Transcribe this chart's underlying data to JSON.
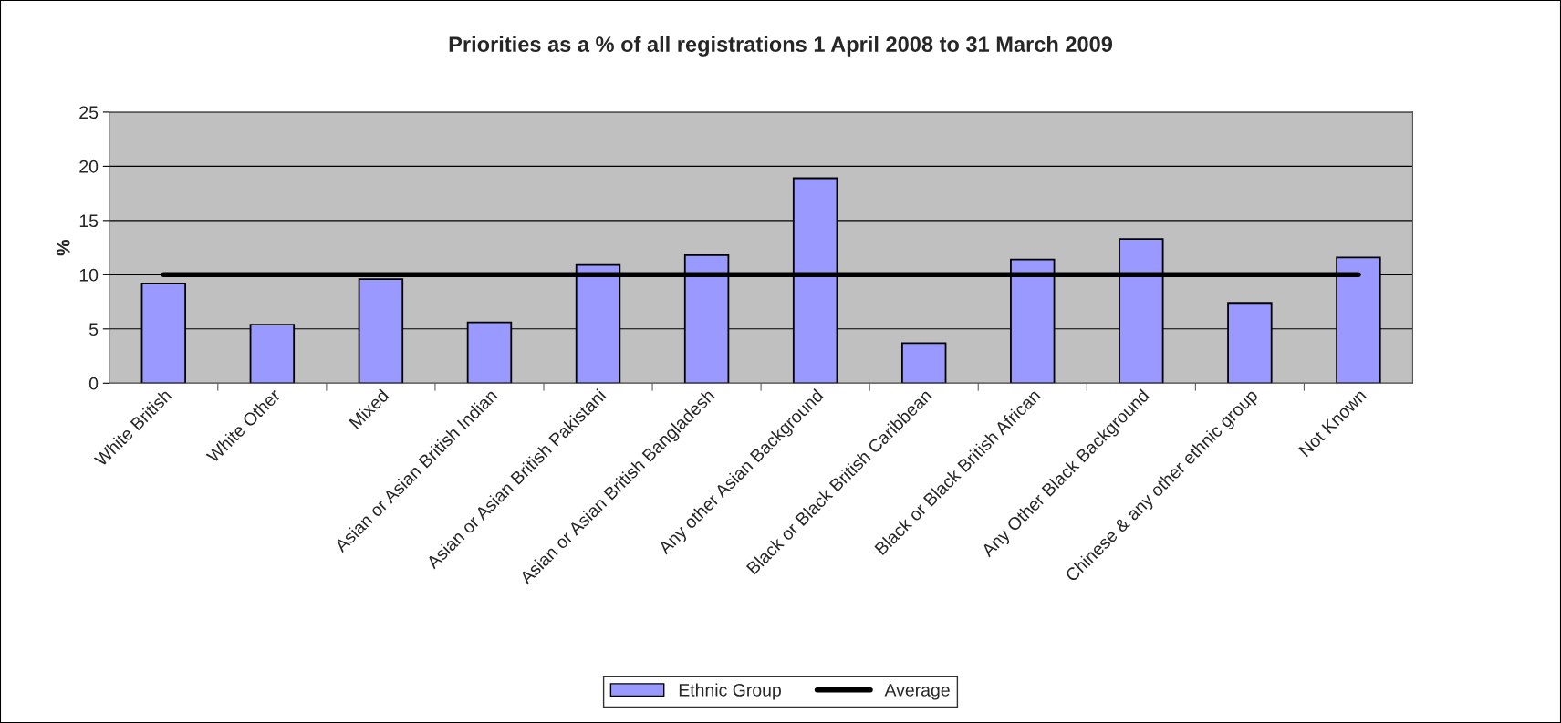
{
  "chart_data": {
    "type": "bar",
    "title": "Priorities as a % of all registrations 1 April 2008 to 31 March 2009",
    "ylabel": "%",
    "categories": [
      "White British",
      "White Other",
      "Mixed",
      "Asian or Asian British Indian",
      "Asian or Asian British Pakistani",
      "Asian or Asian British Bangladesh",
      "Any other Asian Background",
      "Black or Black British Caribbean",
      "Black or Black British African",
      "Any Other Black Background",
      "Chinese & any other ethnic group",
      "Not Known"
    ],
    "series": [
      {
        "name": "Ethnic Group",
        "color": "#9999ff",
        "values": [
          9.2,
          5.4,
          9.6,
          5.6,
          10.9,
          11.8,
          18.9,
          3.7,
          11.4,
          13.3,
          7.4,
          11.6
        ]
      },
      {
        "name": "Average",
        "type": "line",
        "color": "#000000",
        "values": [
          10,
          10,
          10,
          10,
          10,
          10,
          10,
          10,
          10,
          10,
          10,
          10
        ]
      }
    ],
    "ylim": [
      0,
      25
    ],
    "yticks": [
      0,
      5,
      10,
      15,
      20,
      25
    ],
    "grid": "y",
    "legend": "bottom",
    "marker": "none",
    "line_style": "solid"
  }
}
